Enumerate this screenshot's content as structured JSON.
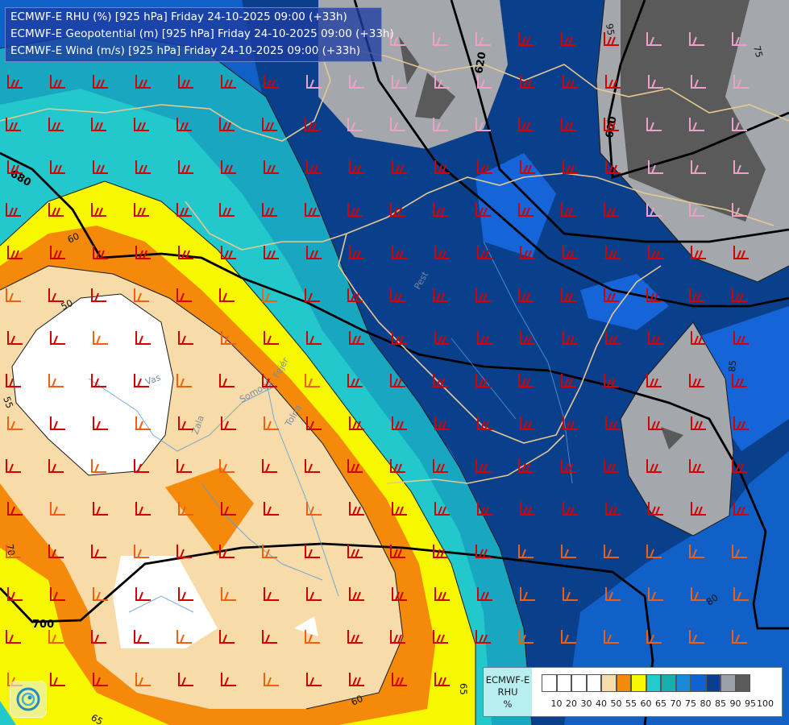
{
  "title_lines": [
    "ECMWF-E RHU (%) [925 hPa] Friday 24-10-2025 09:00 (+33h)",
    "ECMWF-E Geopotential (m) [925 hPa] Friday 24-10-2025 09:00 (+33h)",
    "ECMWF-E Wind (m/s) [925 hPa] Friday 24-10-2025 09:00 (+33h)"
  ],
  "legend": {
    "label_lines": [
      "ECMWF-E",
      "RHU",
      "%"
    ],
    "ticks": [
      "10",
      "20",
      "30",
      "40",
      "50",
      "55",
      "60",
      "65",
      "70",
      "75",
      "80",
      "85",
      "90",
      "95",
      "100"
    ],
    "colors": [
      "#ffffff",
      "#ffffff",
      "#ffffff",
      "#ffffff",
      "#f7dcaa",
      "#f58a0a",
      "#f7f700",
      "#23cccc",
      "#17aeb0",
      "#1a8ad8",
      "#0f62d0",
      "#0a3f8c",
      "#9aa0a6",
      "#5a5a5a"
    ]
  },
  "geopotential_labels": [
    "680",
    "620",
    "600",
    "700"
  ],
  "rhu_labels": [
    "95",
    "75",
    "60",
    "50",
    "55",
    "70",
    "85",
    "80",
    "65",
    "60",
    "65"
  ],
  "place_labels": [
    "Vas",
    "Zala",
    "Somogy",
    "Tolna",
    "Fejér",
    "Pest"
  ],
  "colors": {
    "c100": "#5a5a5a",
    "c95": "#9aa0a6",
    "c90": "#0a3f8c",
    "c85": "#0f4fb0",
    "c80": "#1470d8",
    "c75": "#1aa8c4",
    "c70": "#20c8cc",
    "c65": "#f7f700",
    "c60": "#f58a0a",
    "c55": "#f7dcaa",
    "c50": "#ffffff",
    "wind_red": "#d40000",
    "wind_orange": "#f06010",
    "wind_pink": "#f0a0c8",
    "border": "#e6c890",
    "river": "#5a9ad8"
  }
}
